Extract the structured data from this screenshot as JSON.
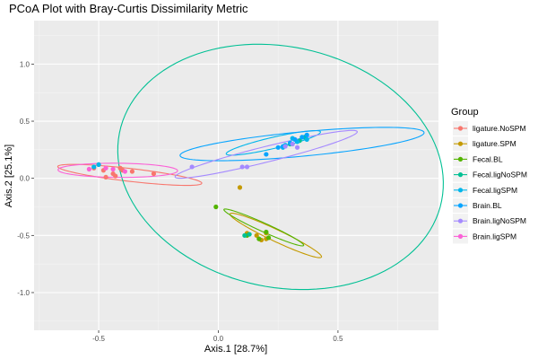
{
  "chart_data": {
    "type": "scatter",
    "title": "PCoA Plot with Bray-Curtis Dissimilarity Metric",
    "xlabel": "Axis.1   [28.7%]",
    "ylabel": "Axis.2   [25.1%]",
    "xlim": [
      -0.77,
      0.92
    ],
    "ylim": [
      -1.33,
      1.38
    ],
    "xticks": [
      -0.5,
      0.0,
      0.5
    ],
    "xtick_labels": [
      "-0.5",
      "0.0",
      "0.5"
    ],
    "yticks": [
      -1.0,
      -0.5,
      0.0,
      0.5,
      1.0
    ],
    "ytick_labels": [
      "-1.0",
      "-0.5",
      "0.0",
      "0.5",
      "1.0"
    ],
    "grid": true,
    "legend": {
      "title": "Group",
      "placement": "right"
    },
    "series": [
      {
        "name": "ligature.NoSPM",
        "color": "#F8766D",
        "points": [
          [
            -0.52,
            0.09
          ],
          [
            -0.5,
            0.12
          ],
          [
            -0.48,
            0.07
          ],
          [
            -0.44,
            0.04
          ],
          [
            -0.41,
            0.09
          ],
          [
            -0.36,
            0.06
          ],
          [
            -0.47,
            0.01
          ],
          [
            -0.27,
            0.04
          ],
          [
            -0.4,
            0.07
          ],
          [
            -0.43,
            0.02
          ]
        ],
        "ellipse": {
          "cx": -0.37,
          "cy": 0.03,
          "rx": 0.31,
          "ry": 0.055,
          "angle_deg": -14.0
        }
      },
      {
        "name": "ligature.SPM",
        "color": "#C49A00",
        "points": [
          [
            0.09,
            -0.08
          ],
          [
            0.12,
            -0.48
          ],
          [
            0.16,
            -0.5
          ],
          [
            0.18,
            -0.54
          ],
          [
            0.2,
            -0.53
          ],
          [
            0.2,
            -0.48
          ]
        ],
        "ellipse": {
          "cx": 0.24,
          "cy": -0.5,
          "rx": 0.27,
          "ry": 0.04,
          "angle_deg": -45.5
        }
      },
      {
        "name": "Fecal.BL",
        "color": "#53B400",
        "points": [
          [
            -0.01,
            -0.25
          ],
          [
            0.12,
            -0.5
          ],
          [
            0.2,
            -0.47
          ],
          [
            0.21,
            -0.52
          ],
          [
            0.17,
            -0.53
          ]
        ],
        "ellipse": {
          "cx": 0.19,
          "cy": -0.43,
          "rx": 0.23,
          "ry": 0.03,
          "angle_deg": -44.0
        }
      },
      {
        "name": "Fecal.ligNoSPM",
        "color": "#00C094",
        "points": [
          [
            0.11,
            -0.5
          ],
          [
            0.13,
            -0.49
          ],
          [
            0.3,
            0.3
          ],
          [
            0.34,
            0.33
          ],
          [
            0.36,
            0.36
          ]
        ],
        "ellipse": {
          "cx": 0.26,
          "cy": 0.1,
          "rx": 0.67,
          "ry": 1.08,
          "angle_deg": 8.0
        }
      },
      {
        "name": "Fecal.ligSPM",
        "color": "#00B6EB",
        "points": [
          [
            -0.52,
            0.1
          ],
          [
            -0.5,
            0.12
          ],
          [
            0.27,
            0.27
          ],
          [
            0.28,
            0.29
          ],
          [
            0.31,
            0.35
          ],
          [
            0.33,
            0.32
          ],
          [
            0.35,
            0.36
          ],
          [
            0.37,
            0.34
          ]
        ],
        "ellipse": {
          "cx": 0.23,
          "cy": 0.31,
          "rx": 0.22,
          "ry": 0.045,
          "angle_deg": 27.0
        }
      },
      {
        "name": "Brain.BL",
        "color": "#06A4FF",
        "points": [
          [
            0.2,
            0.21
          ],
          [
            0.25,
            0.27
          ],
          [
            0.27,
            0.28
          ],
          [
            0.3,
            0.31
          ],
          [
            0.32,
            0.34
          ],
          [
            0.35,
            0.36
          ],
          [
            0.37,
            0.38
          ]
        ],
        "ellipse": {
          "cx": 0.35,
          "cy": 0.3,
          "rx": 0.52,
          "ry": 0.105,
          "angle_deg": 11.5
        }
      },
      {
        "name": "Brain.ligNoSPM",
        "color": "#A58AFF",
        "points": [
          [
            -0.11,
            0.1
          ],
          [
            0.1,
            0.1
          ],
          [
            0.12,
            0.1
          ],
          [
            0.28,
            0.28
          ],
          [
            0.31,
            0.3
          ],
          [
            0.33,
            0.27
          ]
        ],
        "ellipse": {
          "cx": 0.2,
          "cy": 0.21,
          "rx": 0.43,
          "ry": 0.062,
          "angle_deg": 28.0
        }
      },
      {
        "name": "Brain.ligSPM",
        "color": "#FB61D7",
        "points": [
          [
            -0.54,
            0.08
          ],
          [
            -0.47,
            0.09
          ],
          [
            -0.44,
            0.08
          ],
          [
            -0.39,
            0.06
          ]
        ],
        "ellipse": {
          "cx": -0.42,
          "cy": 0.07,
          "rx": 0.25,
          "ry": 0.062,
          "angle_deg": -1.0
        }
      }
    ]
  }
}
